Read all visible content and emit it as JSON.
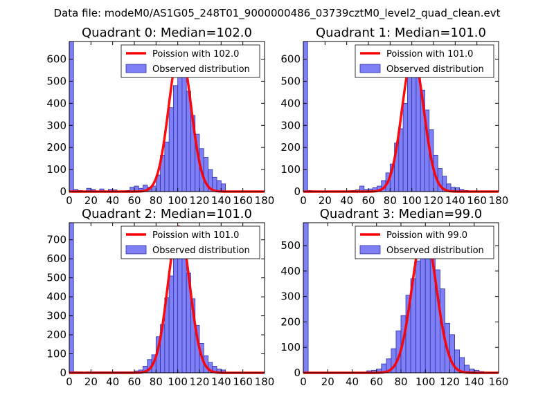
{
  "figure": {
    "suptitle": "Data file: modeM0/AS1G05_248T01_9000000486_03739cztM0_level2_quad_clean.evt"
  },
  "colors": {
    "bar_fill": "#7f7ff6",
    "bar_edge": "#2f2fa8",
    "fit_line": "#ff0000"
  },
  "chart_data": [
    {
      "type": "bar",
      "title": "Quadrant 0: Median=102.0",
      "xlim": [
        0,
        180
      ],
      "ylim": [
        0,
        680
      ],
      "xticks": [
        0,
        20,
        40,
        60,
        80,
        100,
        120,
        140,
        160,
        180
      ],
      "yticks": [
        0,
        100,
        200,
        300,
        400,
        500,
        600
      ],
      "bin_width": 4,
      "bins": [
        [
          0,
          680
        ],
        [
          4,
          10
        ],
        [
          8,
          5
        ],
        [
          12,
          3
        ],
        [
          16,
          15
        ],
        [
          20,
          10
        ],
        [
          24,
          3
        ],
        [
          28,
          12
        ],
        [
          32,
          3
        ],
        [
          36,
          10
        ],
        [
          40,
          8
        ],
        [
          44,
          3
        ],
        [
          48,
          3
        ],
        [
          52,
          5
        ],
        [
          56,
          20
        ],
        [
          60,
          25
        ],
        [
          64,
          15
        ],
        [
          68,
          30
        ],
        [
          72,
          20
        ],
        [
          76,
          25
        ],
        [
          80,
          75
        ],
        [
          84,
          165
        ],
        [
          88,
          225
        ],
        [
          92,
          380
        ],
        [
          96,
          480
        ],
        [
          100,
          545
        ],
        [
          104,
          610
        ],
        [
          108,
          455
        ],
        [
          112,
          345
        ],
        [
          116,
          260
        ],
        [
          120,
          195
        ],
        [
          124,
          155
        ],
        [
          128,
          100
        ],
        [
          132,
          65
        ],
        [
          136,
          50
        ],
        [
          140,
          35
        ]
      ],
      "legend": [
        {
          "label": "Poission with 102.0",
          "kind": "line"
        },
        {
          "label": "Observed distribution",
          "kind": "patch"
        }
      ],
      "fit": {
        "mean": 102.0,
        "peak": 650,
        "sigma": 10.1
      }
    },
    {
      "type": "bar",
      "title": "Quadrant 1: Median=101.0",
      "xlim": [
        0,
        180
      ],
      "ylim": [
        0,
        680
      ],
      "xticks": [
        0,
        20,
        40,
        60,
        80,
        100,
        120,
        140,
        160,
        180
      ],
      "yticks": [
        0,
        100,
        200,
        300,
        400,
        500,
        600
      ],
      "bin_width": 4,
      "bins": [
        [
          0,
          680
        ],
        [
          4,
          5
        ],
        [
          8,
          3
        ],
        [
          12,
          2
        ],
        [
          16,
          3
        ],
        [
          20,
          2
        ],
        [
          24,
          3
        ],
        [
          28,
          2
        ],
        [
          32,
          3
        ],
        [
          36,
          3
        ],
        [
          40,
          3
        ],
        [
          44,
          5
        ],
        [
          48,
          8
        ],
        [
          52,
          25
        ],
        [
          56,
          10
        ],
        [
          60,
          12
        ],
        [
          64,
          18
        ],
        [
          68,
          25
        ],
        [
          72,
          50
        ],
        [
          76,
          85
        ],
        [
          80,
          125
        ],
        [
          84,
          220
        ],
        [
          88,
          285
        ],
        [
          92,
          400
        ],
        [
          96,
          540
        ],
        [
          100,
          610
        ],
        [
          104,
          560
        ],
        [
          108,
          460
        ],
        [
          112,
          370
        ],
        [
          116,
          280
        ],
        [
          120,
          165
        ],
        [
          124,
          105
        ],
        [
          128,
          70
        ],
        [
          132,
          35
        ],
        [
          136,
          20
        ],
        [
          140,
          18
        ],
        [
          144,
          10
        ],
        [
          148,
          5
        ]
      ],
      "legend": [
        {
          "label": "Poission with 101.0",
          "kind": "line"
        },
        {
          "label": "Observed distribution",
          "kind": "patch"
        }
      ],
      "fit": {
        "mean": 101.0,
        "peak": 615,
        "sigma": 10.05
      }
    },
    {
      "type": "bar",
      "title": "Quadrant 2: Median=101.0",
      "xlim": [
        0,
        180
      ],
      "ylim": [
        0,
        790
      ],
      "xticks": [
        0,
        20,
        40,
        60,
        80,
        100,
        120,
        140,
        160,
        180
      ],
      "yticks": [
        0,
        100,
        200,
        300,
        400,
        500,
        600,
        700
      ],
      "bin_width": 4,
      "bins": [
        [
          0,
          790
        ],
        [
          4,
          5
        ],
        [
          8,
          5
        ],
        [
          12,
          3
        ],
        [
          16,
          5
        ],
        [
          20,
          5
        ],
        [
          24,
          5
        ],
        [
          28,
          5
        ],
        [
          32,
          5
        ],
        [
          36,
          5
        ],
        [
          40,
          5
        ],
        [
          44,
          5
        ],
        [
          48,
          5
        ],
        [
          52,
          5
        ],
        [
          56,
          5
        ],
        [
          60,
          10
        ],
        [
          64,
          15
        ],
        [
          68,
          35
        ],
        [
          72,
          70
        ],
        [
          76,
          95
        ],
        [
          80,
          190
        ],
        [
          84,
          255
        ],
        [
          88,
          395
        ],
        [
          92,
          510
        ],
        [
          96,
          620
        ],
        [
          100,
          760
        ],
        [
          104,
          680
        ],
        [
          108,
          525
        ],
        [
          112,
          390
        ],
        [
          116,
          250
        ],
        [
          120,
          155
        ],
        [
          124,
          90
        ],
        [
          128,
          55
        ],
        [
          132,
          35
        ],
        [
          136,
          20
        ],
        [
          140,
          15
        ]
      ],
      "legend": [
        {
          "label": "Poission with 101.0",
          "kind": "line"
        },
        {
          "label": "Observed distribution",
          "kind": "patch"
        }
      ],
      "fit": {
        "mean": 101.0,
        "peak": 770,
        "sigma": 10.05
      }
    },
    {
      "type": "bar",
      "title": "Quadrant 3: Median=99.0",
      "xlim": [
        0,
        160
      ],
      "ylim": [
        0,
        590
      ],
      "xticks": [
        0,
        20,
        40,
        60,
        80,
        100,
        120,
        140,
        160
      ],
      "yticks": [
        0,
        100,
        200,
        300,
        400,
        500
      ],
      "bin_width": 4,
      "bins": [
        [
          0,
          590
        ],
        [
          4,
          3
        ],
        [
          8,
          2
        ],
        [
          12,
          2
        ],
        [
          16,
          2
        ],
        [
          20,
          2
        ],
        [
          24,
          2
        ],
        [
          28,
          3
        ],
        [
          32,
          2
        ],
        [
          36,
          2
        ],
        [
          40,
          3
        ],
        [
          44,
          3
        ],
        [
          48,
          3
        ],
        [
          52,
          8
        ],
        [
          56,
          10
        ],
        [
          60,
          15
        ],
        [
          64,
          35
        ],
        [
          68,
          55
        ],
        [
          72,
          95
        ],
        [
          76,
          165
        ],
        [
          80,
          225
        ],
        [
          84,
          305
        ],
        [
          88,
          370
        ],
        [
          92,
          440
        ],
        [
          96,
          505
        ],
        [
          100,
          555
        ],
        [
          104,
          455
        ],
        [
          108,
          405
        ],
        [
          112,
          330
        ],
        [
          116,
          195
        ],
        [
          120,
          150
        ],
        [
          124,
          90
        ],
        [
          128,
          60
        ],
        [
          132,
          30
        ],
        [
          136,
          15
        ],
        [
          140,
          10
        ],
        [
          144,
          5
        ]
      ],
      "legend": [
        {
          "label": "Poission with 99.0",
          "kind": "line"
        },
        {
          "label": "Observed distribution",
          "kind": "patch"
        }
      ],
      "fit": {
        "mean": 99.0,
        "peak": 560,
        "sigma": 9.95
      }
    }
  ]
}
